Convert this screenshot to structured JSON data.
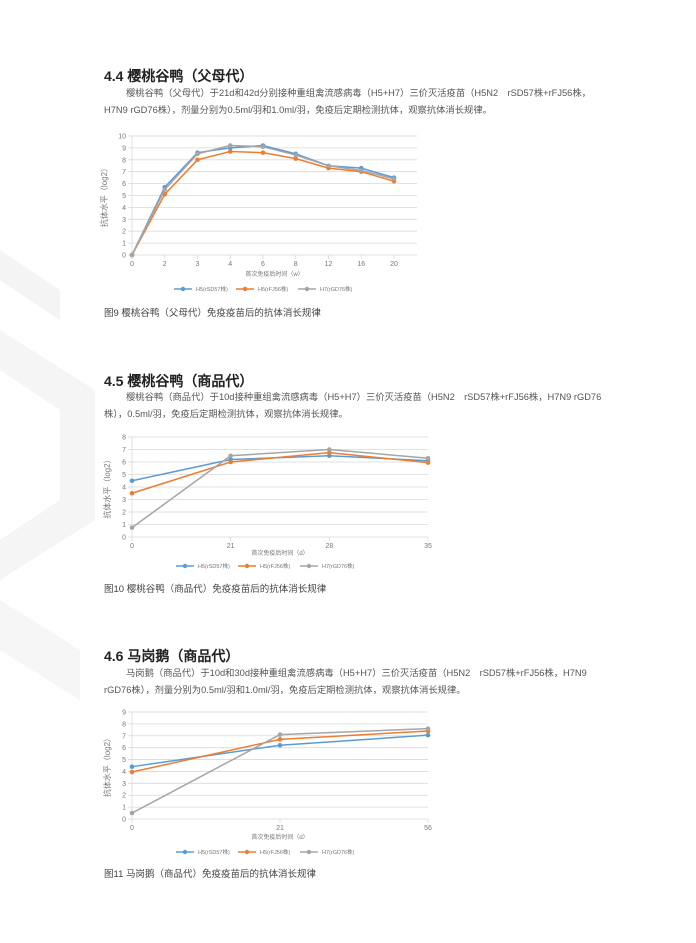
{
  "sections": [
    {
      "heading": "4.4 樱桃谷鸭（父母代）",
      "paragraph": "樱桃谷鸭（父母代）于21d和42d分别接种重组禽流感病毒（H5+H7）三价灭活疫苗（H5N2　rSD57株+rFJ56株，H7N9 rGD76株），剂量分别为0.5ml/羽和1.0ml/羽，免疫后定期检测抗体，观察抗体消长规律。",
      "caption": "图9 樱桃谷鸭（父母代）免疫疫苗后的抗体消长规律"
    },
    {
      "heading": "4.5 樱桃谷鸭（商品代）",
      "paragraph": "樱桃谷鸭（商品代）于10d接种重组禽流感病毒（H5+H7）三价灭活疫苗（H5N2　rSD57株+rFJ56株，H7N9 rGD76株），0.5ml/羽，免疫后定期检测抗体，观察抗体消长规律。",
      "caption": "图10 樱桃谷鸭（商品代）免疫疫苗后的抗体消长规律"
    },
    {
      "heading": "4.6 马岗鹅（商品代）",
      "paragraph": "马岗鹅（商品代）于10d和30d接种重组禽流感病毒（H5+H7）三价灭活疫苗（H5N2　rSD57株+rFJ56株，H7N9 rGD76株），剂量分别为0.5ml/羽和1.0ml/羽，免疫后定期检测抗体，观察抗体消长规律。",
      "caption": "图11 马岗鹅（商品代）免疫疫苗后的抗体消长规律"
    }
  ],
  "chart_data": [
    {
      "type": "line",
      "xlabel": "首次免疫后时间（w）",
      "ylabel": "抗体水平（log2）",
      "categories": [
        "0",
        "2",
        "3",
        "4",
        "6",
        "8",
        "12",
        "16",
        "20"
      ],
      "ylim": [
        0,
        10
      ],
      "yticks": [
        0,
        1,
        2,
        3,
        4,
        5,
        6,
        7,
        8,
        9,
        10
      ],
      "grid": true,
      "legend": "bottom",
      "series": [
        {
          "name": "H5(rSD57株)",
          "color": "#5b9bd5",
          "values": [
            0,
            5.7,
            8.6,
            9.0,
            9.2,
            8.5,
            7.5,
            7.3,
            6.5
          ]
        },
        {
          "name": "H5(rFJ56株)",
          "color": "#ed7d31",
          "values": [
            0,
            5.1,
            8.0,
            8.7,
            8.6,
            8.1,
            7.3,
            7.0,
            6.2
          ]
        },
        {
          "name": "H7(rGD76株)",
          "color": "#a5a5a5",
          "values": [
            0,
            5.5,
            8.5,
            9.2,
            9.1,
            8.4,
            7.5,
            7.1,
            6.4
          ]
        }
      ]
    },
    {
      "type": "line",
      "xlabel": "首次免疫后时间（d）",
      "ylabel": "抗体水平（log2）",
      "categories": [
        "0",
        "21",
        "28",
        "35"
      ],
      "ylim": [
        0,
        8
      ],
      "yticks": [
        0,
        1,
        2,
        3,
        4,
        5,
        6,
        7,
        8
      ],
      "grid": true,
      "legend": "bottom",
      "series": [
        {
          "name": "H5(rSD57株)",
          "color": "#5b9bd5",
          "values": [
            4.5,
            6.2,
            6.5,
            6.1
          ]
        },
        {
          "name": "H5(rFJ56株)",
          "color": "#ed7d31",
          "values": [
            3.5,
            6.0,
            6.75,
            5.95
          ]
        },
        {
          "name": "H7(rGD76株)",
          "color": "#a5a5a5",
          "values": [
            0.75,
            6.5,
            7.0,
            6.3
          ]
        }
      ]
    },
    {
      "type": "line",
      "xlabel": "首次免疫后时间（d）",
      "ylabel": "抗体水平（log2）",
      "categories": [
        "0",
        "21",
        "56"
      ],
      "ylim": [
        0,
        9
      ],
      "yticks": [
        0,
        1,
        2,
        3,
        4,
        5,
        6,
        7,
        8,
        9
      ],
      "grid": true,
      "legend": "bottom",
      "series": [
        {
          "name": "H5(rSD57株)",
          "color": "#5b9bd5",
          "values": [
            4.4,
            6.2,
            7.05
          ]
        },
        {
          "name": "H5(rFJ56株)",
          "color": "#ed7d31",
          "values": [
            3.95,
            6.7,
            7.4
          ]
        },
        {
          "name": "H7(rGD76株)",
          "color": "#a5a5a5",
          "values": [
            0.5,
            7.1,
            7.6
          ]
        }
      ]
    }
  ]
}
